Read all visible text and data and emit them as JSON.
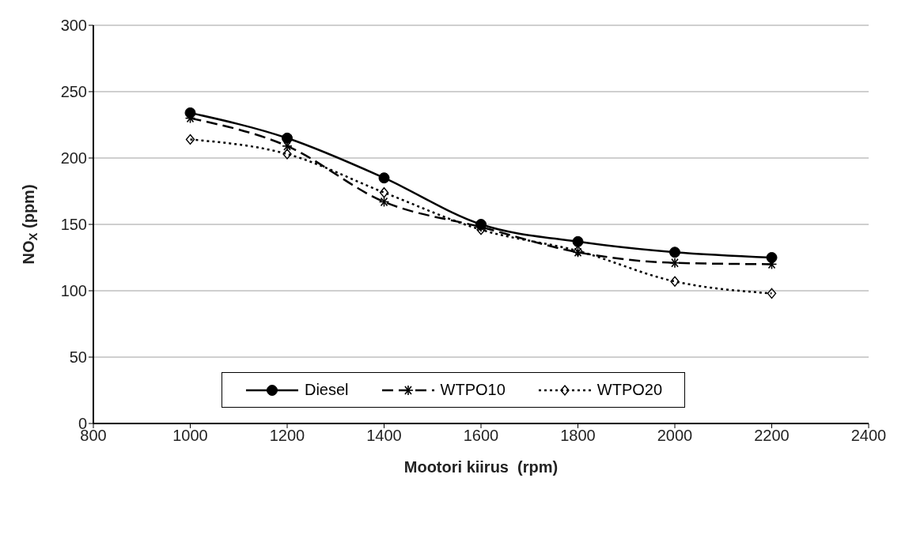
{
  "chart_data": {
    "type": "line",
    "xlabel": "Mootori kiirus  (rpm)",
    "ylabel": "NO$_{X}$ (ppm)",
    "x": [
      1000,
      1200,
      1400,
      1600,
      1800,
      2000,
      2200
    ],
    "series": [
      {
        "name": "Diesel",
        "color": "#000000",
        "values": [
          234,
          215,
          185,
          150,
          137,
          129,
          125
        ],
        "marker": "circle",
        "line_style": "solid"
      },
      {
        "name": "WTPO10",
        "color": "#000000",
        "values": [
          230,
          209,
          167,
          148,
          129,
          121,
          120
        ],
        "marker": "cross",
        "line_style": "dashed"
      },
      {
        "name": "WTPO20",
        "color": "#000000",
        "values": [
          214,
          203,
          174,
          146,
          130,
          107,
          98
        ],
        "marker": "diamond",
        "line_style": "dotted"
      }
    ],
    "xlim": [
      800,
      2400
    ],
    "xticks": [
      800,
      1000,
      1200,
      1400,
      1600,
      1800,
      2000,
      2200,
      2400
    ],
    "ylim": [
      0,
      300
    ],
    "yticks": [
      0,
      50,
      100,
      150,
      200,
      250,
      300
    ],
    "grid": "y",
    "legend": "bottom"
  }
}
